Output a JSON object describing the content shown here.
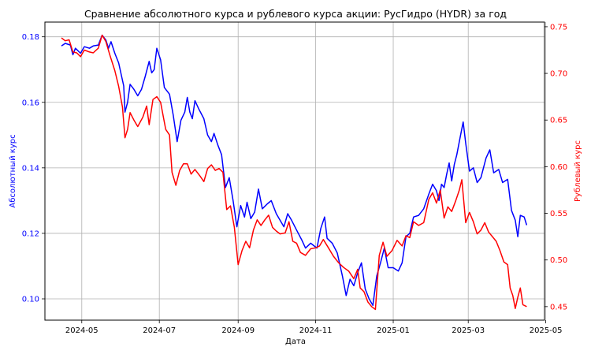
{
  "chart_data": {
    "type": "line",
    "title": "Сравнение абсолютного курса и рублевого курса акции: РусГидро (HYDR) за год",
    "xlabel": "Дата",
    "ylabel_left": "Абсолютный курс",
    "ylabel_right": "Рублевый курс",
    "x_axis": {
      "type": "date",
      "range": [
        "2024-04-02",
        "2025-04-30"
      ],
      "ticks": [
        {
          "date": "2024-05-01",
          "label": "2024-05"
        },
        {
          "date": "2024-07-01",
          "label": "2024-07"
        },
        {
          "date": "2024-09-01",
          "label": "2024-09"
        },
        {
          "date": "2024-11-01",
          "label": "2024-11"
        },
        {
          "date": "2025-01-01",
          "label": "2025-01"
        },
        {
          "date": "2025-03-01",
          "label": "2025-03"
        },
        {
          "date": "2025-05-01",
          "label": "2025-05"
        }
      ]
    },
    "y_left": {
      "range": [
        0.0935,
        0.1845
      ],
      "ticks": [
        {
          "value": 0.1,
          "label": "0.10"
        },
        {
          "value": 0.12,
          "label": "0.12"
        },
        {
          "value": 0.14,
          "label": "0.14"
        },
        {
          "value": 0.16,
          "label": "0.16"
        },
        {
          "value": 0.18,
          "label": "0.18"
        }
      ],
      "color": "#0000ff"
    },
    "y_right": {
      "range": [
        0.4355,
        0.755
      ],
      "ticks": [
        {
          "value": 0.45,
          "label": "0.45"
        },
        {
          "value": 0.5,
          "label": "0.50"
        },
        {
          "value": 0.55,
          "label": "0.55"
        },
        {
          "value": 0.6,
          "label": "0.60"
        },
        {
          "value": 0.65,
          "label": "0.65"
        },
        {
          "value": 0.7,
          "label": "0.70"
        },
        {
          "value": 0.75,
          "label": "0.75"
        }
      ],
      "color": "#ff0000"
    },
    "grid": true,
    "series": [
      {
        "axis": "left",
        "color": "#0000ff",
        "points": [
          [
            "2024-04-15",
            0.1772
          ],
          [
            "2024-04-18",
            0.178
          ],
          [
            "2024-04-22",
            0.1775
          ],
          [
            "2024-04-24",
            0.1745
          ],
          [
            "2024-04-26",
            0.1765
          ],
          [
            "2024-04-30",
            0.175
          ],
          [
            "2024-05-03",
            0.177
          ],
          [
            "2024-05-07",
            0.1765
          ],
          [
            "2024-05-10",
            0.1772
          ],
          [
            "2024-05-14",
            0.1775
          ],
          [
            "2024-05-17",
            0.1805
          ],
          [
            "2024-05-20",
            0.179
          ],
          [
            "2024-05-22",
            0.1765
          ],
          [
            "2024-05-24",
            0.1785
          ],
          [
            "2024-05-27",
            0.175
          ],
          [
            "2024-05-30",
            0.172
          ],
          [
            "2024-06-03",
            0.165
          ],
          [
            "2024-06-04",
            0.157
          ],
          [
            "2024-06-06",
            0.16
          ],
          [
            "2024-06-08",
            0.1655
          ],
          [
            "2024-06-11",
            0.164
          ],
          [
            "2024-06-14",
            0.162
          ],
          [
            "2024-06-17",
            0.164
          ],
          [
            "2024-06-20",
            0.168
          ],
          [
            "2024-06-23",
            0.1725
          ],
          [
            "2024-06-25",
            0.169
          ],
          [
            "2024-06-27",
            0.17
          ],
          [
            "2024-06-29",
            0.1765
          ],
          [
            "2024-07-02",
            0.173
          ],
          [
            "2024-07-05",
            0.1645
          ],
          [
            "2024-07-09",
            0.1625
          ],
          [
            "2024-07-12",
            0.156
          ],
          [
            "2024-07-15",
            0.148
          ],
          [
            "2024-07-18",
            0.1545
          ],
          [
            "2024-07-21",
            0.157
          ],
          [
            "2024-07-23",
            0.1615
          ],
          [
            "2024-07-25",
            0.157
          ],
          [
            "2024-07-27",
            0.155
          ],
          [
            "2024-07-29",
            0.1605
          ],
          [
            "2024-08-01",
            0.158
          ],
          [
            "2024-08-05",
            0.155
          ],
          [
            "2024-08-08",
            0.15
          ],
          [
            "2024-08-11",
            0.148
          ],
          [
            "2024-08-13",
            0.1505
          ],
          [
            "2024-08-16",
            0.147
          ],
          [
            "2024-08-19",
            0.144
          ],
          [
            "2024-08-22",
            0.134
          ],
          [
            "2024-08-25",
            0.137
          ],
          [
            "2024-08-28",
            0.13
          ],
          [
            "2024-08-31",
            0.122
          ],
          [
            "2024-09-03",
            0.1285
          ],
          [
            "2024-09-06",
            0.125
          ],
          [
            "2024-09-08",
            0.1295
          ],
          [
            "2024-09-11",
            0.1245
          ],
          [
            "2024-09-14",
            0.1265
          ],
          [
            "2024-09-17",
            0.1335
          ],
          [
            "2024-09-20",
            0.1275
          ],
          [
            "2024-09-24",
            0.129
          ],
          [
            "2024-09-27",
            0.13
          ],
          [
            "2024-10-01",
            0.126
          ],
          [
            "2024-10-04",
            0.124
          ],
          [
            "2024-10-07",
            0.122
          ],
          [
            "2024-10-10",
            0.126
          ],
          [
            "2024-10-13",
            0.124
          ],
          [
            "2024-10-17",
            0.121
          ],
          [
            "2024-10-21",
            0.118
          ],
          [
            "2024-10-24",
            0.1155
          ],
          [
            "2024-10-28",
            0.117
          ],
          [
            "2024-11-02",
            0.1155
          ],
          [
            "2024-11-05",
            0.1215
          ],
          [
            "2024-11-08",
            0.125
          ],
          [
            "2024-11-10",
            0.1185
          ],
          [
            "2024-11-14",
            0.117
          ],
          [
            "2024-11-18",
            0.114
          ],
          [
            "2024-11-22",
            0.107
          ],
          [
            "2024-11-25",
            0.101
          ],
          [
            "2024-11-28",
            0.106
          ],
          [
            "2024-12-01",
            0.104
          ],
          [
            "2024-12-04",
            0.108
          ],
          [
            "2024-12-07",
            0.111
          ],
          [
            "2024-12-10",
            0.103
          ],
          [
            "2024-12-13",
            0.1
          ],
          [
            "2024-12-16",
            0.098
          ],
          [
            "2024-12-19",
            0.107
          ],
          [
            "2024-12-22",
            0.111
          ],
          [
            "2024-12-25",
            0.1155
          ],
          [
            "2024-12-28",
            0.1095
          ],
          [
            "2025-01-01",
            0.1095
          ],
          [
            "2025-01-05",
            0.1085
          ],
          [
            "2025-01-08",
            0.111
          ],
          [
            "2025-01-11",
            0.119
          ],
          [
            "2025-01-14",
            0.12
          ],
          [
            "2025-01-17",
            0.125
          ],
          [
            "2025-01-21",
            0.1255
          ],
          [
            "2025-01-25",
            0.1275
          ],
          [
            "2025-01-29",
            0.132
          ],
          [
            "2025-02-01",
            0.135
          ],
          [
            "2025-02-04",
            0.133
          ],
          [
            "2025-02-06",
            0.13
          ],
          [
            "2025-02-08",
            0.135
          ],
          [
            "2025-02-10",
            0.134
          ],
          [
            "2025-02-12",
            0.138
          ],
          [
            "2025-02-14",
            0.1415
          ],
          [
            "2025-02-16",
            0.136
          ],
          [
            "2025-02-18",
            0.141
          ],
          [
            "2025-02-20",
            0.144
          ],
          [
            "2025-02-23",
            0.15
          ],
          [
            "2025-02-25",
            0.154
          ],
          [
            "2025-02-27",
            0.1475
          ],
          [
            "2025-03-02",
            0.139
          ],
          [
            "2025-03-05",
            0.14
          ],
          [
            "2025-03-08",
            0.1355
          ],
          [
            "2025-03-11",
            0.137
          ],
          [
            "2025-03-15",
            0.143
          ],
          [
            "2025-03-18",
            0.1455
          ],
          [
            "2025-03-21",
            0.1385
          ],
          [
            "2025-03-25",
            0.1395
          ],
          [
            "2025-03-28",
            0.1355
          ],
          [
            "2025-04-01",
            0.1365
          ],
          [
            "2025-04-04",
            0.127
          ],
          [
            "2025-04-07",
            0.124
          ],
          [
            "2025-04-09",
            0.119
          ],
          [
            "2025-04-11",
            0.1255
          ],
          [
            "2025-04-14",
            0.125
          ],
          [
            "2025-04-16",
            0.1225
          ]
        ]
      },
      {
        "axis": "right",
        "color": "#ff0000",
        "points": [
          [
            "2024-04-15",
            0.738
          ],
          [
            "2024-04-18",
            0.735
          ],
          [
            "2024-04-21",
            0.736
          ],
          [
            "2024-04-24",
            0.723
          ],
          [
            "2024-04-27",
            0.722
          ],
          [
            "2024-04-30",
            0.718
          ],
          [
            "2024-05-03",
            0.725
          ],
          [
            "2024-05-07",
            0.723
          ],
          [
            "2024-05-10",
            0.722
          ],
          [
            "2024-05-14",
            0.727
          ],
          [
            "2024-05-17",
            0.741
          ],
          [
            "2024-05-20",
            0.734
          ],
          [
            "2024-05-23",
            0.72
          ],
          [
            "2024-05-27",
            0.703
          ],
          [
            "2024-05-30",
            0.686
          ],
          [
            "2024-06-02",
            0.664
          ],
          [
            "2024-06-04",
            0.631
          ],
          [
            "2024-06-06",
            0.64
          ],
          [
            "2024-06-08",
            0.658
          ],
          [
            "2024-06-11",
            0.65
          ],
          [
            "2024-06-14",
            0.643
          ],
          [
            "2024-06-18",
            0.653
          ],
          [
            "2024-06-21",
            0.665
          ],
          [
            "2024-06-23",
            0.645
          ],
          [
            "2024-06-26",
            0.672
          ],
          [
            "2024-06-29",
            0.675
          ],
          [
            "2024-07-02",
            0.669
          ],
          [
            "2024-07-06",
            0.64
          ],
          [
            "2024-07-09",
            0.634
          ],
          [
            "2024-07-11",
            0.594
          ],
          [
            "2024-07-14",
            0.58
          ],
          [
            "2024-07-17",
            0.596
          ],
          [
            "2024-07-20",
            0.603
          ],
          [
            "2024-07-23",
            0.603
          ],
          [
            "2024-07-26",
            0.592
          ],
          [
            "2024-07-29",
            0.597
          ],
          [
            "2024-08-02",
            0.59
          ],
          [
            "2024-08-05",
            0.584
          ],
          [
            "2024-08-08",
            0.598
          ],
          [
            "2024-08-11",
            0.602
          ],
          [
            "2024-08-14",
            0.596
          ],
          [
            "2024-08-17",
            0.598
          ],
          [
            "2024-08-20",
            0.594
          ],
          [
            "2024-08-23",
            0.554
          ],
          [
            "2024-08-26",
            0.558
          ],
          [
            "2024-08-29",
            0.535
          ],
          [
            "2024-09-01",
            0.495
          ],
          [
            "2024-09-04",
            0.51
          ],
          [
            "2024-09-07",
            0.52
          ],
          [
            "2024-09-10",
            0.513
          ],
          [
            "2024-09-13",
            0.532
          ],
          [
            "2024-09-16",
            0.543
          ],
          [
            "2024-09-19",
            0.537
          ],
          [
            "2024-09-22",
            0.543
          ],
          [
            "2024-09-25",
            0.548
          ],
          [
            "2024-09-28",
            0.535
          ],
          [
            "2024-10-01",
            0.531
          ],
          [
            "2024-10-04",
            0.528
          ],
          [
            "2024-10-08",
            0.529
          ],
          [
            "2024-10-11",
            0.541
          ],
          [
            "2024-10-14",
            0.52
          ],
          [
            "2024-10-17",
            0.518
          ],
          [
            "2024-10-20",
            0.508
          ],
          [
            "2024-10-24",
            0.505
          ],
          [
            "2024-10-28",
            0.512
          ],
          [
            "2024-11-01",
            0.513
          ],
          [
            "2024-11-04",
            0.515
          ],
          [
            "2024-11-07",
            0.522
          ],
          [
            "2024-11-11",
            0.513
          ],
          [
            "2024-11-15",
            0.504
          ],
          [
            "2024-11-19",
            0.497
          ],
          [
            "2024-11-23",
            0.492
          ],
          [
            "2024-11-27",
            0.488
          ],
          [
            "2024-12-01",
            0.48
          ],
          [
            "2024-12-04",
            0.49
          ],
          [
            "2024-12-06",
            0.47
          ],
          [
            "2024-12-09",
            0.466
          ],
          [
            "2024-12-12",
            0.455
          ],
          [
            "2024-12-15",
            0.45
          ],
          [
            "2024-12-18",
            0.447
          ],
          [
            "2024-12-21",
            0.505
          ],
          [
            "2024-12-24",
            0.519
          ],
          [
            "2024-12-27",
            0.504
          ],
          [
            "2024-12-31",
            0.51
          ],
          [
            "2025-01-04",
            0.521
          ],
          [
            "2025-01-08",
            0.515
          ],
          [
            "2025-01-11",
            0.526
          ],
          [
            "2025-01-14",
            0.524
          ],
          [
            "2025-01-17",
            0.541
          ],
          [
            "2025-01-21",
            0.537
          ],
          [
            "2025-01-25",
            0.54
          ],
          [
            "2025-01-29",
            0.565
          ],
          [
            "2025-02-01",
            0.572
          ],
          [
            "2025-02-04",
            0.561
          ],
          [
            "2025-02-07",
            0.575
          ],
          [
            "2025-02-10",
            0.545
          ],
          [
            "2025-02-13",
            0.557
          ],
          [
            "2025-02-16",
            0.552
          ],
          [
            "2025-02-19",
            0.563
          ],
          [
            "2025-02-22",
            0.575
          ],
          [
            "2025-02-24",
            0.586
          ],
          [
            "2025-02-27",
            0.54
          ],
          [
            "2025-03-02",
            0.551
          ],
          [
            "2025-03-05",
            0.541
          ],
          [
            "2025-03-08",
            0.528
          ],
          [
            "2025-03-11",
            0.532
          ],
          [
            "2025-03-14",
            0.54
          ],
          [
            "2025-03-17",
            0.53
          ],
          [
            "2025-03-20",
            0.525
          ],
          [
            "2025-03-23",
            0.52
          ],
          [
            "2025-03-26",
            0.51
          ],
          [
            "2025-03-29",
            0.498
          ],
          [
            "2025-04-01",
            0.495
          ],
          [
            "2025-04-03",
            0.47
          ],
          [
            "2025-04-05",
            0.462
          ],
          [
            "2025-04-07",
            0.448
          ],
          [
            "2025-04-09",
            0.46
          ],
          [
            "2025-04-11",
            0.47
          ],
          [
            "2025-04-13",
            0.452
          ],
          [
            "2025-04-16",
            0.45
          ]
        ]
      }
    ]
  }
}
